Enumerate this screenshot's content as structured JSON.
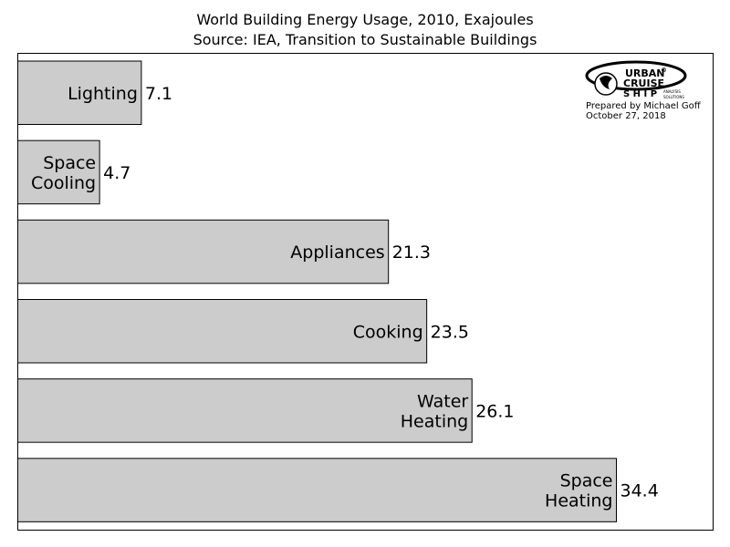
{
  "chart_data": {
    "type": "bar",
    "orientation": "horizontal",
    "title": "World Building Energy Usage, 2010, Exajoules",
    "subtitle": "Source: IEA, Transition to Sustainable Buildings",
    "categories": [
      [
        "Lighting"
      ],
      [
        "Space",
        "Cooling"
      ],
      [
        "Appliances"
      ],
      [
        "Cooking"
      ],
      [
        "Water",
        "Heating"
      ],
      [
        "Space",
        "Heating"
      ]
    ],
    "values": [
      7.1,
      4.7,
      21.3,
      23.5,
      26.1,
      34.4
    ],
    "value_labels": [
      "7.1",
      "4.7",
      "21.3",
      "23.5",
      "26.1",
      "34.4"
    ],
    "xlim": [
      0,
      40
    ],
    "bar_color": "#cccccc",
    "edge_color": "#000000",
    "grid": false
  },
  "logo": {
    "line1": "URBAN",
    "line2": "CRUISE",
    "line3": "S H I P",
    "tag1": "ANALYSIS",
    "tag2": "SOLUTIONS",
    "registered": "®"
  },
  "credit": {
    "prepared_by": "Prepared by Michael Goff",
    "date": "October 27, 2018"
  }
}
